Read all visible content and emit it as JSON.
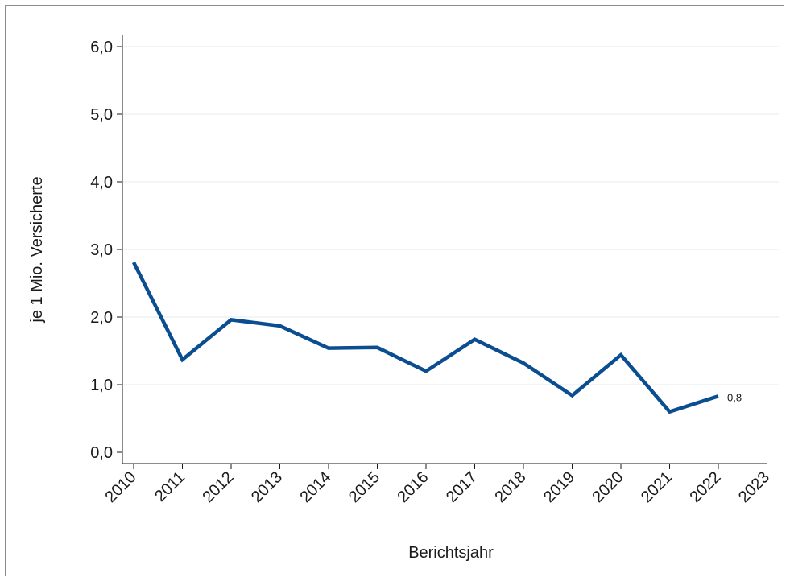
{
  "chart_data": {
    "type": "line",
    "title": "",
    "xlabel": "Berichtsjahr",
    "ylabel": "je 1 Mio. Versicherte",
    "x": [
      2010,
      2011,
      2012,
      2013,
      2014,
      2015,
      2016,
      2017,
      2018,
      2019,
      2020,
      2021,
      2022
    ],
    "x_ticks": [
      "2010",
      "2011",
      "2012",
      "2013",
      "2014",
      "2015",
      "2016",
      "2017",
      "2018",
      "2019",
      "2020",
      "2021",
      "2022",
      "2023"
    ],
    "xlim": [
      2010,
      2023
    ],
    "ylim": [
      0,
      6
    ],
    "y_ticks": [
      "0,0",
      "1,0",
      "2,0",
      "3,0",
      "4,0",
      "5,0",
      "6,0"
    ],
    "grid": true,
    "series": [
      {
        "values": [
          2.81,
          1.37,
          1.96,
          1.87,
          1.54,
          1.55,
          1.2,
          1.67,
          1.32,
          0.84,
          1.44,
          0.6,
          0.83
        ],
        "color": "#0b4d91"
      }
    ],
    "annotations": [
      {
        "x": 2022,
        "y": 0.83,
        "text": "0,8"
      }
    ]
  }
}
